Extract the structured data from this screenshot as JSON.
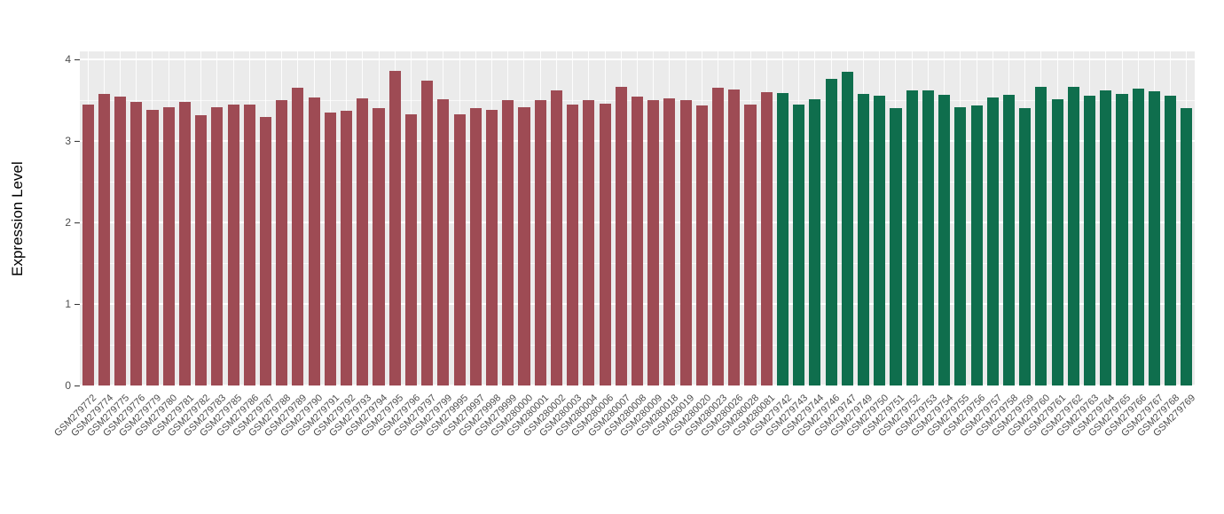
{
  "chart_data": {
    "type": "bar",
    "title": "",
    "xlabel": "",
    "ylabel": "Expression Level",
    "ylim": [
      0,
      4.1
    ],
    "yticks": [
      0,
      1,
      2,
      3,
      4
    ],
    "ytick_labels": [
      "0",
      "1",
      "2",
      "3",
      "4"
    ],
    "yticks_minor": [
      0.5,
      1.5,
      2.5,
      3.5
    ],
    "grid": "on",
    "legend_position": "none",
    "panel_background": "#ebebeb",
    "gridline_color": "#ffffff",
    "categories": [
      "GSM279772",
      "GSM279774",
      "GSM279775",
      "GSM279776",
      "GSM279779",
      "GSM279780",
      "GSM279781",
      "GSM279782",
      "GSM279783",
      "GSM279785",
      "GSM279786",
      "GSM279787",
      "GSM279788",
      "GSM279789",
      "GSM279790",
      "GSM279791",
      "GSM279792",
      "GSM279793",
      "GSM279794",
      "GSM279795",
      "GSM279796",
      "GSM279797",
      "GSM279799",
      "GSM279995",
      "GSM279997",
      "GSM279998",
      "GSM279999",
      "GSM280000",
      "GSM280001",
      "GSM280002",
      "GSM280003",
      "GSM280004",
      "GSM280006",
      "GSM280007",
      "GSM280008",
      "GSM280009",
      "GSM280018",
      "GSM280019",
      "GSM280020",
      "GSM280023",
      "GSM280026",
      "GSM280028",
      "GSM280081",
      "GSM279742",
      "GSM279743",
      "GSM279744",
      "GSM279746",
      "GSM279747",
      "GSM279749",
      "GSM279750",
      "GSM279751",
      "GSM279752",
      "GSM279753",
      "GSM279754",
      "GSM279755",
      "GSM279756",
      "GSM279757",
      "GSM279758",
      "GSM279759",
      "GSM279760",
      "GSM279761",
      "GSM279762",
      "GSM279763",
      "GSM279764",
      "GSM279765",
      "GSM279766",
      "GSM279767",
      "GSM279768",
      "GSM279769"
    ],
    "values": [
      3.45,
      3.58,
      3.55,
      3.48,
      3.38,
      3.42,
      3.48,
      3.32,
      3.42,
      3.45,
      3.45,
      3.3,
      3.5,
      3.65,
      3.53,
      3.35,
      3.37,
      3.52,
      3.4,
      3.86,
      3.33,
      3.74,
      3.51,
      3.33,
      3.4,
      3.38,
      3.5,
      3.42,
      3.5,
      3.62,
      3.45,
      3.5,
      3.46,
      3.67,
      3.54,
      3.5,
      3.52,
      3.5,
      3.44,
      3.65,
      3.63,
      3.45,
      3.6,
      3.59,
      3.45,
      3.51,
      3.76,
      3.85,
      3.58,
      3.56,
      3.4,
      3.62,
      3.62,
      3.57,
      3.42,
      3.44,
      3.53,
      3.57,
      3.4,
      3.67,
      3.51,
      3.67,
      3.56,
      3.62,
      3.58,
      3.64,
      3.61,
      3.56,
      3.4
    ],
    "segments": [
      {
        "start": 0,
        "end": 42,
        "color": "#9e4b54"
      },
      {
        "start": 43,
        "end": 68,
        "color": "#0f6e4d"
      }
    ]
  }
}
